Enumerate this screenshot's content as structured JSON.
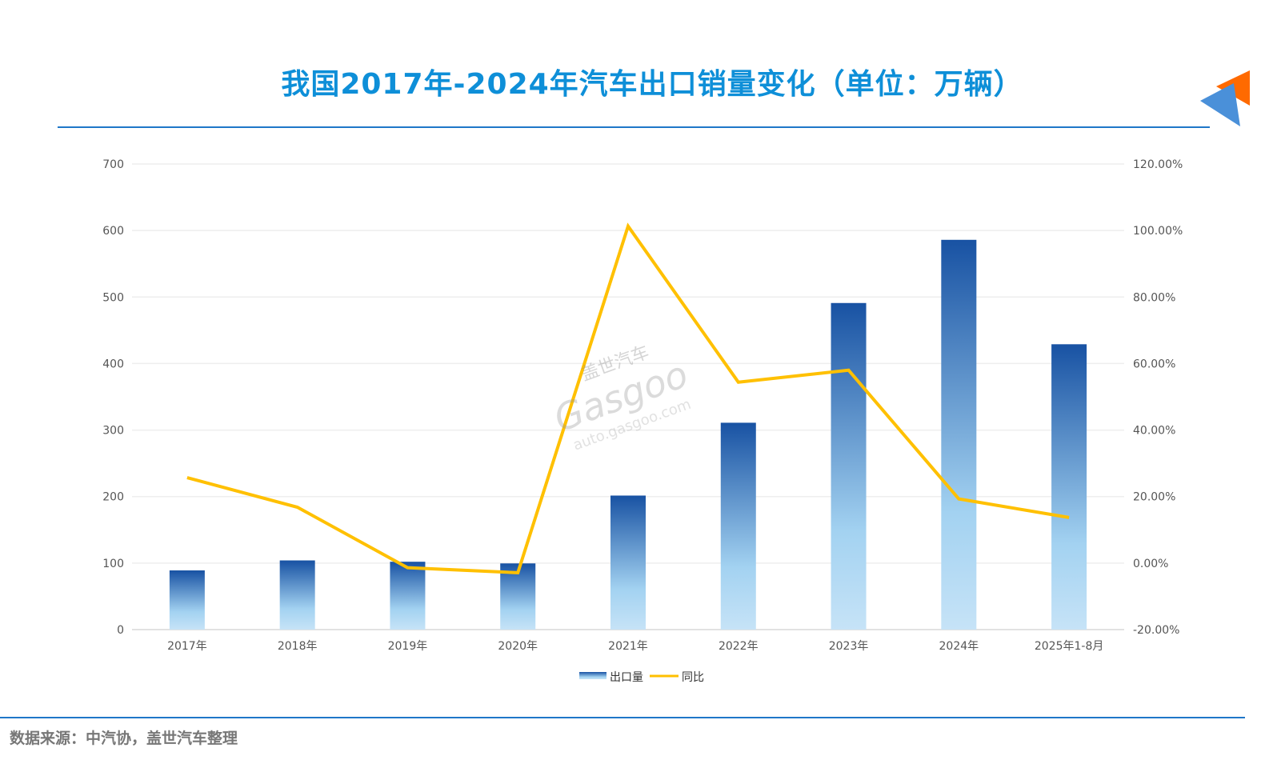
{
  "header": {
    "title": "我国2017年-2024年汽车出口销量变化（单位：万辆）"
  },
  "footer": {
    "source": "数据来源：中汽协，盖世汽车整理"
  },
  "watermark": {
    "cn": "盖世汽车",
    "brand": "Gasgoo",
    "url": "auto.gasgoo.com"
  },
  "colors": {
    "title": "#0e8fd8",
    "bar_top": "#1852a3",
    "bar_bottom": "#a8d4f2",
    "line": "#ffc000",
    "rule": "#1f77c8"
  },
  "chart_data": {
    "type": "bar",
    "title": "我国2017年-2024年汽车出口销量变化（单位：万辆）",
    "categories": [
      "2017年",
      "2018年",
      "2019年",
      "2020年",
      "2021年",
      "2022年",
      "2023年",
      "2024年",
      "2025年1-8月"
    ],
    "series": [
      {
        "name": "出口量",
        "type": "bar",
        "axis": "left",
        "values": [
          89,
          104,
          102,
          99.5,
          201.5,
          311,
          491,
          586,
          429
        ]
      },
      {
        "name": "同比",
        "type": "line",
        "axis": "right",
        "values": [
          25.7,
          16.8,
          -1.4,
          -2.9,
          101.3,
          54.4,
          58.0,
          19.3,
          13.7
        ]
      }
    ],
    "y_left": {
      "range": [
        0,
        700
      ],
      "ticks": [
        "0",
        "100",
        "200",
        "300",
        "400",
        "500",
        "600",
        "700"
      ]
    },
    "y_right": {
      "range": [
        -20,
        120
      ],
      "ticks": [
        "-20.00%",
        "0.00%",
        "20.00%",
        "40.00%",
        "60.00%",
        "80.00%",
        "100.00%",
        "120.00%"
      ]
    },
    "grid": true,
    "legend": "bottom"
  }
}
